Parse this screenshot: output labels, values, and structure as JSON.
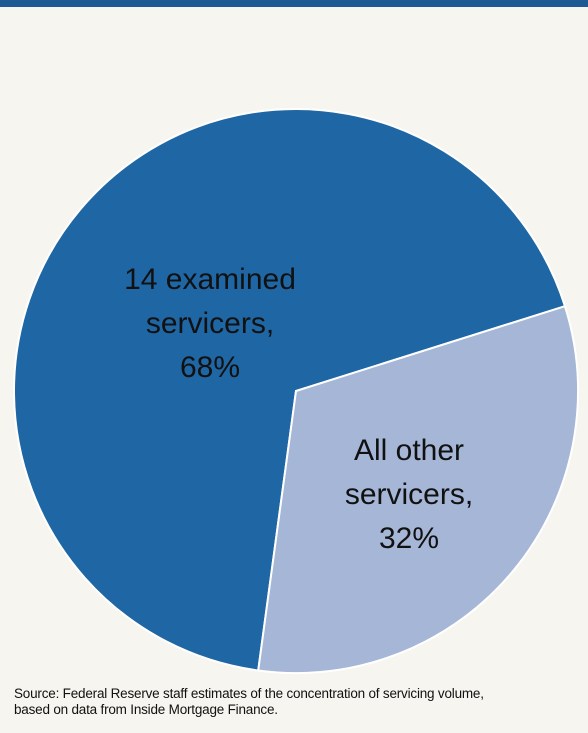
{
  "chart_data": {
    "type": "pie",
    "slices": [
      {
        "name": "14 examined servicers",
        "value": 68,
        "color": "#1f66a5",
        "label_lines": [
          "14 examined",
          "servicers,",
          "68%"
        ]
      },
      {
        "name": "All other servicers",
        "value": 32,
        "color": "#a5b6d7",
        "label_lines": [
          "All other",
          "servicers,",
          "32%"
        ]
      }
    ],
    "units": "%"
  },
  "footer": {
    "source_line1": "Source: Federal Reserve staff estimates of the concentration of servicing volume,",
    "source_line2": "based on data from Inside Mortgage Finance."
  },
  "colors": {
    "top_bar": "#1d5a93",
    "background": "#f7f5ef",
    "slice_stroke": "#ffffff"
  }
}
